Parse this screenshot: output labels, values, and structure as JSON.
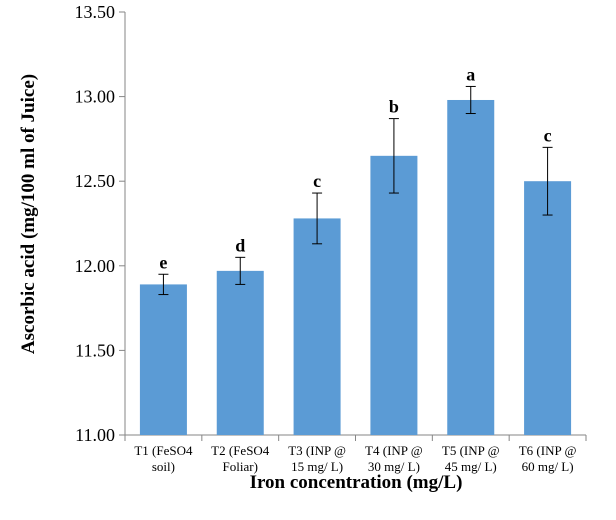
{
  "chart_data": {
    "type": "bar",
    "title": "",
    "xlabel": "Iron concentration (mg/L)",
    "ylabel": "Ascorbic acid (mg/100 ml of Juice)",
    "ylim": [
      11.0,
      13.5
    ],
    "yticks": [
      "11.00",
      "11.50",
      "12.00",
      "12.50",
      "13.00",
      "13.50"
    ],
    "grid": false,
    "legend": "none",
    "bar_color": "#5b9bd5",
    "categories": [
      [
        "T1 (FeSO4",
        "soil)"
      ],
      [
        "T2 (FeSO4",
        "Foliar)"
      ],
      [
        "T3 (INP @",
        "15 mg/ L)"
      ],
      [
        "T4 (INP @",
        "30 mg/ L)"
      ],
      [
        "T5 (INP @",
        "45 mg/ L)"
      ],
      [
        "T6 (INP @",
        "60 mg/ L)"
      ]
    ],
    "values": [
      11.89,
      11.97,
      12.28,
      12.65,
      12.98,
      12.5
    ],
    "error_bars": [
      0.06,
      0.08,
      0.15,
      0.22,
      0.08,
      0.2
    ],
    "significance_letters": [
      "e",
      "d",
      "c",
      "b",
      "a",
      "c"
    ]
  }
}
